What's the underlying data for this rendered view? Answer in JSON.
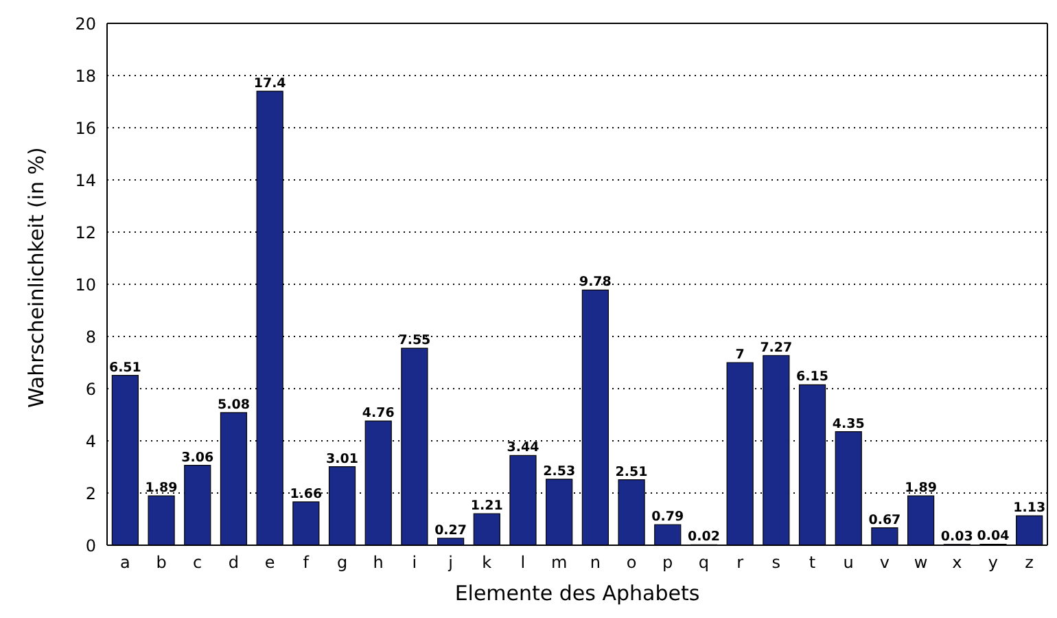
{
  "chart_data": {
    "type": "bar",
    "xlabel": "Elemente des Aphabets",
    "ylabel": "Wahrscheinlichkeit (in %)",
    "categories": [
      "a",
      "b",
      "c",
      "d",
      "e",
      "f",
      "g",
      "h",
      "i",
      "j",
      "k",
      "l",
      "m",
      "n",
      "o",
      "p",
      "q",
      "r",
      "s",
      "t",
      "u",
      "v",
      "w",
      "x",
      "y",
      "z"
    ],
    "values": [
      6.51,
      1.89,
      3.06,
      5.08,
      17.4,
      1.66,
      3.01,
      4.76,
      7.55,
      0.27,
      1.21,
      3.44,
      2.53,
      9.78,
      2.51,
      0.79,
      0.02,
      7,
      7.27,
      6.15,
      4.35,
      0.67,
      1.89,
      0.03,
      0.04,
      1.13
    ],
    "color": "#1a2a8a",
    "ylim": [
      0,
      20
    ],
    "yticks": [
      0,
      2,
      4,
      6,
      8,
      10,
      12,
      14,
      16,
      18,
      20
    ],
    "grid": "y",
    "data_labels": true
  }
}
